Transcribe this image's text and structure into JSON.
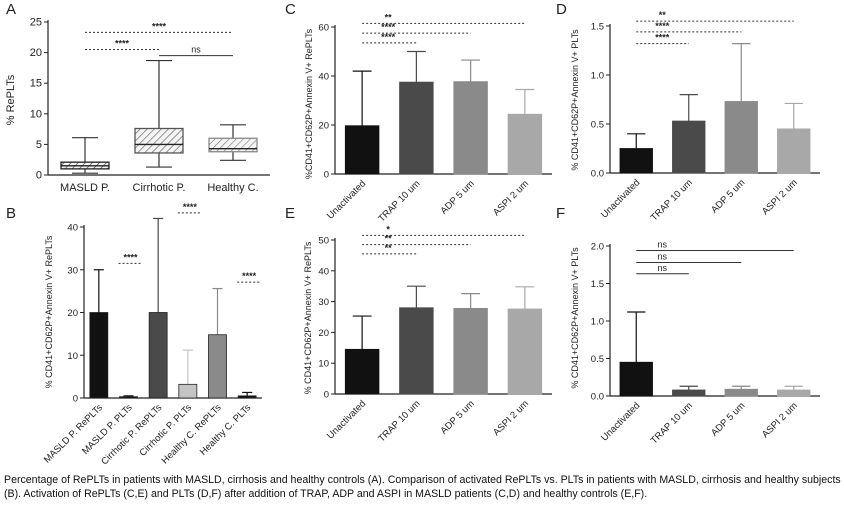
{
  "caption": "Percentage of RePLTs in patients with MASLD, cirrhosis and healthy controls (A). Comparison of activated RePLTs vs. PLTs in patients with MASLD, cirrhosis and healthy subjects (B). Activation of RePLTs (C,E) and PLTs (D,F) after addition of TRAP, ADP and ASPI in MASLD patients (C,D) and healthy controls (E,F).",
  "colors": {
    "black": "#111111",
    "dark": "#4a4a4a",
    "mid": "#8a8a8a",
    "light": "#a8a8a8",
    "pale": "#c4c4c4"
  },
  "chart_data": [
    {
      "panel": "A",
      "type": "box",
      "ylabel": "% RePLTs",
      "ylim": [
        0,
        25
      ],
      "yticks": [
        0,
        5,
        10,
        15,
        20,
        25
      ],
      "categories": [
        "MASLD P.",
        "Cirrhotic P.",
        "Healthy C."
      ],
      "boxes": [
        {
          "min": 0.3,
          "q1": 1.0,
          "median": 1.5,
          "q3": 2.1,
          "max": 6.1
        },
        {
          "min": 1.3,
          "q1": 3.6,
          "median": 5.0,
          "q3": 7.6,
          "max": 18.7
        },
        {
          "min": 2.4,
          "q1": 3.8,
          "median": 4.3,
          "q3": 6.0,
          "max": 8.2
        }
      ],
      "significance": [
        {
          "label": "****",
          "from": 0,
          "to": 2,
          "y": 23.3,
          "style": "dotted"
        },
        {
          "label": "****",
          "from": 0,
          "to": 1,
          "y": 20.5,
          "style": "dotted"
        },
        {
          "label": "ns",
          "from": 1,
          "to": 2,
          "y": 19.5,
          "style": "solid"
        }
      ]
    },
    {
      "panel": "B",
      "type": "bar",
      "ylabel": "% CD41+CD62P+Annexin V+ RePLTs",
      "ylim": [
        0,
        40
      ],
      "yticks": [
        0,
        10,
        20,
        30,
        40
      ],
      "categories": [
        "MASLD P. RePLTs",
        "MASLD P. PLTs",
        "Cirrhotic P. RePLTs",
        "Cirrhotic P. PLTs",
        "Healthy C. RePLTs",
        "Healthy C. PLTs"
      ],
      "values": [
        20,
        0.3,
        20,
        3.2,
        14.8,
        0.5
      ],
      "errors": [
        10,
        0.2,
        22,
        8,
        10.8,
        0.8
      ],
      "significance": [
        {
          "label": "****",
          "from": 0,
          "to": 1,
          "y": 31.5
        },
        {
          "label": "****",
          "from": 2,
          "to": 3,
          "y": 43.3
        },
        {
          "label": "****",
          "from": 4,
          "to": 5,
          "y": 27.1
        }
      ]
    },
    {
      "panel": "C",
      "type": "bar",
      "ylabel": "%CD41+CD62P+Annexin V+ RePLTs",
      "ylim": [
        0,
        60
      ],
      "yticks": [
        0,
        20,
        40,
        60
      ],
      "categories": [
        "Unactivated",
        "TRAP 10 um",
        "ADP 5 um",
        "ASPI 2 um"
      ],
      "values": [
        19.7,
        37.5,
        37.7,
        24.4
      ],
      "errors": [
        22.3,
        12.5,
        8.8,
        10.1
      ],
      "significance": [
        {
          "label": "**",
          "from": 0,
          "to": 3,
          "y": 61.5
        },
        {
          "label": "****",
          "from": 0,
          "to": 2,
          "y": 57.5
        },
        {
          "label": "****",
          "from": 0,
          "to": 1,
          "y": 53.5
        }
      ]
    },
    {
      "panel": "D",
      "type": "bar",
      "ylabel": "% CD41+CD62P+Annexin V+ PLTs",
      "ylim": [
        0,
        1.5
      ],
      "yticks": [
        "0.0",
        "0.5",
        "1.0",
        "1.5"
      ],
      "categories": [
        "Unactivated",
        "TRAP 10 um",
        "ADP 5 um",
        "ASPI 2 um"
      ],
      "values": [
        0.25,
        0.53,
        0.73,
        0.45
      ],
      "errors": [
        0.15,
        0.27,
        0.59,
        0.26
      ],
      "significance": [
        {
          "label": "**",
          "from": 0,
          "to": 3,
          "y": 1.55
        },
        {
          "label": "****",
          "from": 0,
          "to": 2,
          "y": 1.44
        },
        {
          "label": "****",
          "from": 0,
          "to": 1,
          "y": 1.32
        }
      ]
    },
    {
      "panel": "E",
      "type": "bar",
      "ylabel": "% CD41+CD62P+Annexin V+ RePLTs",
      "ylim": [
        0,
        50
      ],
      "yticks": [
        0,
        10,
        20,
        30,
        40,
        50
      ],
      "categories": [
        "Unactivated",
        "TRAP 10 um",
        "ADP 5 um",
        "ASPI 2 um"
      ],
      "values": [
        14.5,
        28,
        27.8,
        27.6
      ],
      "errors": [
        10.8,
        7,
        4.8,
        7.2
      ],
      "significance": [
        {
          "label": "*",
          "from": 0,
          "to": 3,
          "y": 51.5
        },
        {
          "label": "**",
          "from": 0,
          "to": 2,
          "y": 48.5
        },
        {
          "label": "**",
          "from": 0,
          "to": 1,
          "y": 45.5
        }
      ]
    },
    {
      "panel": "F",
      "type": "bar",
      "ylabel": "% CD41+CD62P+Annexin V+ PLTs",
      "ylim": [
        0,
        2.0
      ],
      "yticks": [
        "0.0",
        "0.5",
        "1.0",
        "1.5",
        "2.0"
      ],
      "categories": [
        "Unactivated",
        "TRAP 10 um",
        "ADP 5 um",
        "ASPI 2 um"
      ],
      "values": [
        0.45,
        0.08,
        0.09,
        0.08
      ],
      "errors": [
        0.67,
        0.05,
        0.04,
        0.05
      ],
      "significance": [
        {
          "label": "ns",
          "from": 0,
          "to": 3,
          "y": 1.94
        },
        {
          "label": "ns",
          "from": 0,
          "to": 2,
          "y": 1.78
        },
        {
          "label": "ns",
          "from": 0,
          "to": 1,
          "y": 1.63
        }
      ]
    }
  ]
}
